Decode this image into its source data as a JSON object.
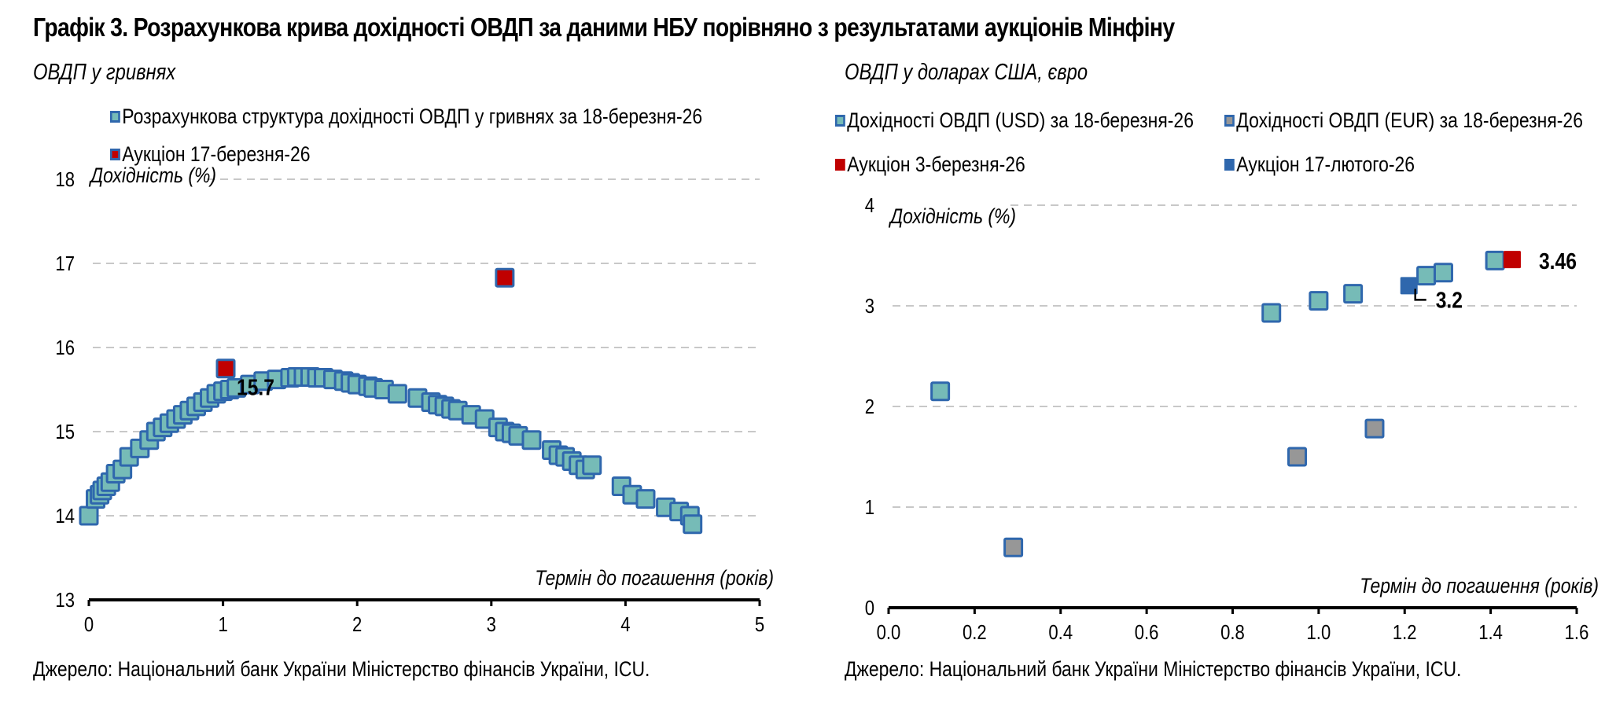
{
  "title": "Графік 3. Розрахункова крива дохідності ОВДП за даними НБУ порівняно з результатами аукціонів Мінфіну",
  "colors": {
    "teal": "#76bbb7",
    "marker_border": "#2f67ad",
    "red": "#c00000",
    "grey": "#979797",
    "blue": "#2f67ad",
    "grid": "#c8c8c8"
  },
  "chart_data": [
    {
      "type": "scatter",
      "title": "ОВДП у гривнях",
      "xlabel": "Термін до погашення (років)",
      "ylabel": "Дохідність (%)",
      "xlim": [
        0,
        5
      ],
      "ylim": [
        13,
        18
      ],
      "xticks": [
        "0",
        "1",
        "2",
        "3",
        "4",
        "5"
      ],
      "yticks": [
        "13",
        "14",
        "15",
        "16",
        "17",
        "18"
      ],
      "grid": true,
      "legend_position": "top",
      "series": [
        {
          "name": "Розрахункова структура дохідності ОВДП у гривнях за 18-березня-26",
          "color": "teal",
          "points": [
            [
              0,
              14.0
            ],
            [
              0.05,
              14.2
            ],
            [
              0.08,
              14.25
            ],
            [
              0.1,
              14.3
            ],
            [
              0.13,
              14.35
            ],
            [
              0.16,
              14.4
            ],
            [
              0.2,
              14.5
            ],
            [
              0.25,
              14.55
            ],
            [
              0.3,
              14.7
            ],
            [
              0.38,
              14.8
            ],
            [
              0.45,
              14.9
            ],
            [
              0.5,
              15.0
            ],
            [
              0.55,
              15.05
            ],
            [
              0.6,
              15.1
            ],
            [
              0.65,
              15.15
            ],
            [
              0.7,
              15.2
            ],
            [
              0.75,
              15.25
            ],
            [
              0.8,
              15.3
            ],
            [
              0.85,
              15.35
            ],
            [
              0.9,
              15.4
            ],
            [
              0.95,
              15.45
            ],
            [
              1.0,
              15.48
            ],
            [
              1.05,
              15.5
            ],
            [
              1.1,
              15.52
            ],
            [
              1.2,
              15.56
            ],
            [
              1.3,
              15.6
            ],
            [
              1.4,
              15.62
            ],
            [
              1.5,
              15.64
            ],
            [
              1.55,
              15.65
            ],
            [
              1.6,
              15.65
            ],
            [
              1.65,
              15.65
            ],
            [
              1.7,
              15.64
            ],
            [
              1.75,
              15.64
            ],
            [
              1.82,
              15.62
            ],
            [
              1.9,
              15.6
            ],
            [
              1.95,
              15.58
            ],
            [
              2.0,
              15.56
            ],
            [
              2.08,
              15.54
            ],
            [
              2.12,
              15.52
            ],
            [
              2.2,
              15.5
            ],
            [
              2.3,
              15.45
            ],
            [
              2.45,
              15.4
            ],
            [
              2.55,
              15.35
            ],
            [
              2.6,
              15.32
            ],
            [
              2.65,
              15.3
            ],
            [
              2.7,
              15.27
            ],
            [
              2.75,
              15.25
            ],
            [
              2.85,
              15.2
            ],
            [
              2.95,
              15.15
            ],
            [
              3.05,
              15.05
            ],
            [
              3.1,
              15.0
            ],
            [
              3.15,
              14.98
            ],
            [
              3.2,
              14.95
            ],
            [
              3.3,
              14.9
            ],
            [
              3.45,
              14.78
            ],
            [
              3.5,
              14.72
            ],
            [
              3.55,
              14.7
            ],
            [
              3.6,
              14.65
            ],
            [
              3.65,
              14.6
            ],
            [
              3.7,
              14.55
            ],
            [
              3.75,
              14.6
            ],
            [
              3.97,
              14.35
            ],
            [
              4.05,
              14.25
            ],
            [
              4.15,
              14.2
            ],
            [
              4.3,
              14.1
            ],
            [
              4.4,
              14.05
            ],
            [
              4.48,
              14.0
            ],
            [
              4.5,
              13.9
            ]
          ]
        },
        {
          "name": "Аукціон 17-березня-26",
          "color": "red",
          "points": [
            [
              1.02,
              15.75
            ],
            [
              3.1,
              16.83
            ]
          ]
        }
      ],
      "annotations": [
        {
          "text": "15.7",
          "x": 1.02,
          "y": 15.75
        }
      ]
    },
    {
      "type": "scatter",
      "title": "ОВДП у доларах США, євро",
      "xlabel": "Термін до погашення (років)",
      "ylabel": "Дохідність (%)",
      "xlim": [
        0,
        1.6
      ],
      "ylim": [
        0,
        4
      ],
      "xticks": [
        "0.0",
        "0.2",
        "0.4",
        "0.6",
        "0.8",
        "1.0",
        "1.2",
        "1.4",
        "1.6"
      ],
      "yticks": [
        "0",
        "1",
        "2",
        "3",
        "4"
      ],
      "grid": true,
      "legend_position": "top",
      "series": [
        {
          "name": "Дохідності ОВДП (USD) за 18-березня-26",
          "color": "teal",
          "points": [
            [
              0.12,
              2.15
            ],
            [
              0.89,
              2.93
            ],
            [
              1.0,
              3.05
            ],
            [
              1.08,
              3.12
            ],
            [
              1.25,
              3.3
            ],
            [
              1.29,
              3.33
            ],
            [
              1.41,
              3.45
            ]
          ]
        },
        {
          "name": "Дохідності ОВДП (EUR) за 18-березня-26",
          "color": "grey",
          "points": [
            [
              0.29,
              0.6
            ],
            [
              0.95,
              1.5
            ],
            [
              1.13,
              1.78
            ]
          ]
        },
        {
          "name": "Аукціон 3-березня-26",
          "color": "red",
          "points": [
            [
              1.45,
              3.46
            ]
          ]
        },
        {
          "name": "Аукціон 17-лютого-26",
          "color": "blue",
          "points": [
            [
              1.21,
              3.2
            ]
          ]
        }
      ],
      "annotations": [
        {
          "text": "3.46",
          "x": 1.45,
          "y": 3.46
        },
        {
          "text": "3.2",
          "x": 1.21,
          "y": 3.2
        }
      ]
    }
  ],
  "source_left": "Джерело: Національний банк України Міністерство фінансів України, ICU.",
  "source_right": "Джерело: Національний банк України Міністерство фінансів України, ICU."
}
